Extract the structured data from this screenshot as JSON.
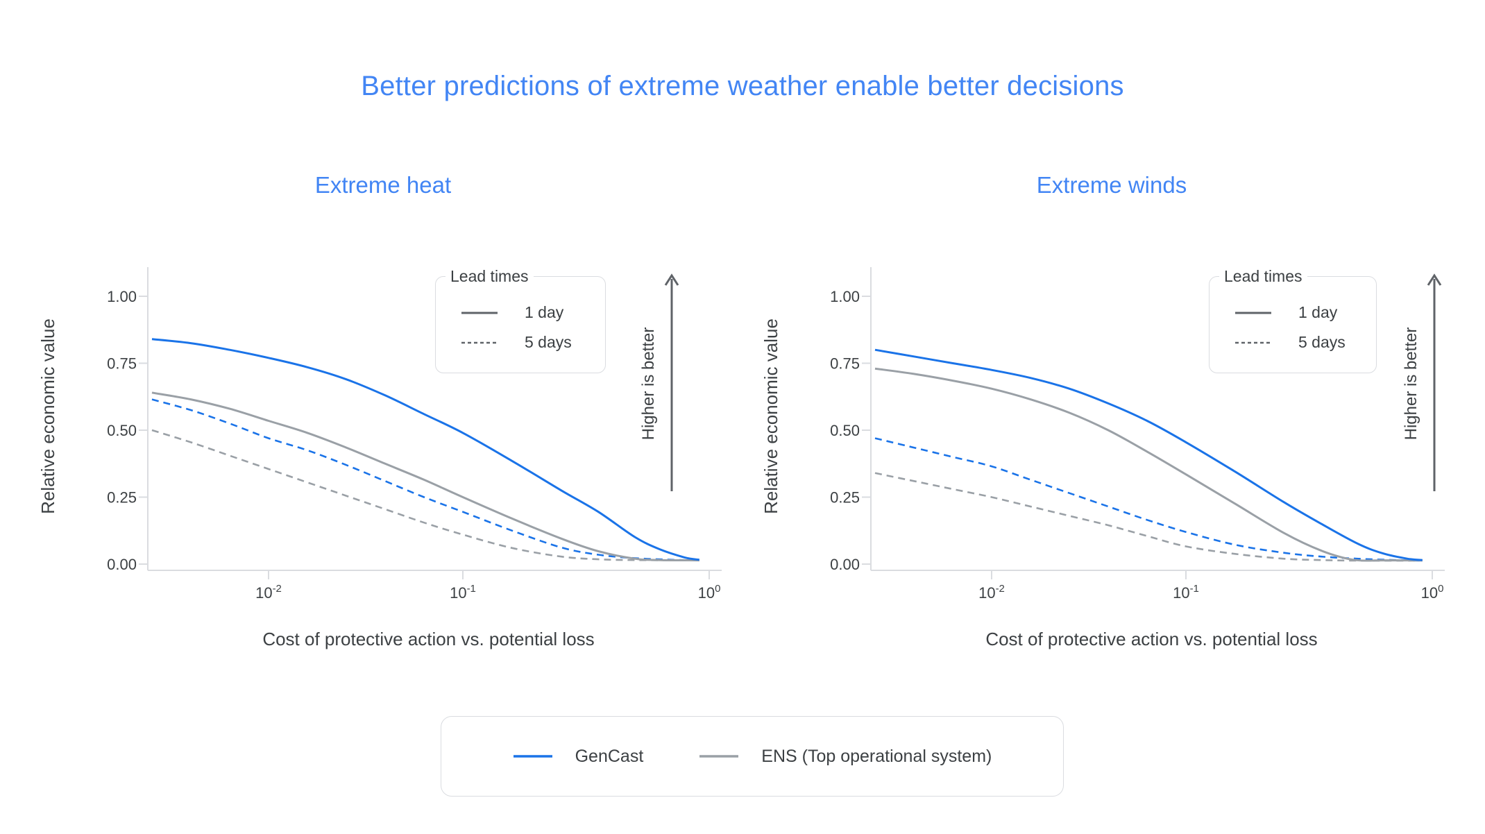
{
  "figure": {
    "title": "Better predictions of extreme weather enable better decisions"
  },
  "annotations": {
    "higher_is_better": "Higher is better"
  },
  "lead_times_legend": {
    "title": "Lead times",
    "items": [
      {
        "label": "1 day",
        "line_style": "solid"
      },
      {
        "label": "5 days",
        "line_style": "dashed"
      }
    ]
  },
  "series_legend": {
    "items": [
      {
        "label": "GenCast",
        "color": "#1a73e8"
      },
      {
        "label": "ENS (Top operational system)",
        "color": "#9aa0a6"
      }
    ]
  },
  "colors": {
    "accent_blue": "#4285f4",
    "gencast_blue": "#1a73e8",
    "ens_gray": "#9aa0a6",
    "axis_line": "#dadce0",
    "text_dark": "#3c4043",
    "arrow_gray": "#5f6368"
  },
  "chart_data": [
    {
      "type": "line",
      "title": "Extreme heat",
      "xlabel": "Cost of protective action vs. potential loss",
      "ylabel": "Relative economic value",
      "x_scale": "log",
      "x_tick_exponents": [
        -2,
        -1,
        0
      ],
      "y_ticks": [
        0.0,
        0.25,
        0.5,
        0.75,
        1.0
      ],
      "ylim": [
        0,
        1.05
      ],
      "xlim_exponents": [
        -2.62,
        0.06
      ],
      "grid": false,
      "legend_position": "upper-right",
      "series": [
        {
          "name": "ENS (Top operational system)",
          "lead_time": "5 days",
          "color": "#9aa0a6",
          "dashed": true,
          "points": [
            [
              -2.6,
              0.5
            ],
            [
              -2.4,
              0.455
            ],
            [
              -2.2,
              0.405
            ],
            [
              -2.0,
              0.355
            ],
            [
              -1.8,
              0.305
            ],
            [
              -1.6,
              0.255
            ],
            [
              -1.4,
              0.205
            ],
            [
              -1.2,
              0.155
            ],
            [
              -1.0,
              0.11
            ],
            [
              -0.8,
              0.06
            ],
            [
              -0.6,
              0.028
            ],
            [
              -0.45,
              0.018
            ],
            [
              -0.3,
              0.015
            ],
            [
              -0.04,
              0.014
            ]
          ]
        },
        {
          "name": "GenCast",
          "lead_time": "5 days",
          "color": "#1a73e8",
          "dashed": true,
          "points": [
            [
              -2.6,
              0.615
            ],
            [
              -2.4,
              0.575
            ],
            [
              -2.2,
              0.525
            ],
            [
              -2.0,
              0.47
            ],
            [
              -1.8,
              0.425
            ],
            [
              -1.6,
              0.37
            ],
            [
              -1.4,
              0.31
            ],
            [
              -1.2,
              0.25
            ],
            [
              -1.0,
              0.195
            ],
            [
              -0.8,
              0.125
            ],
            [
              -0.6,
              0.062
            ],
            [
              -0.45,
              0.035
            ],
            [
              -0.3,
              0.022
            ],
            [
              -0.15,
              0.016
            ],
            [
              -0.04,
              0.014
            ]
          ]
        },
        {
          "name": "ENS (Top operational system)",
          "lead_time": "1 day",
          "color": "#9aa0a6",
          "dashed": false,
          "points": [
            [
              -2.6,
              0.64
            ],
            [
              -2.4,
              0.615
            ],
            [
              -2.2,
              0.58
            ],
            [
              -2.0,
              0.535
            ],
            [
              -1.8,
              0.49
            ],
            [
              -1.6,
              0.435
            ],
            [
              -1.4,
              0.375
            ],
            [
              -1.2,
              0.315
            ],
            [
              -1.0,
              0.25
            ],
            [
              -0.8,
              0.17
            ],
            [
              -0.6,
              0.095
            ],
            [
              -0.45,
              0.048
            ],
            [
              -0.3,
              0.02
            ],
            [
              -0.2,
              0.015
            ],
            [
              -0.04,
              0.014
            ]
          ]
        },
        {
          "name": "GenCast",
          "lead_time": "1 day",
          "color": "#1a73e8",
          "dashed": false,
          "points": [
            [
              -2.6,
              0.84
            ],
            [
              -2.4,
              0.825
            ],
            [
              -2.2,
              0.8
            ],
            [
              -2.0,
              0.77
            ],
            [
              -1.8,
              0.735
            ],
            [
              -1.6,
              0.69
            ],
            [
              -1.4,
              0.63
            ],
            [
              -1.2,
              0.56
            ],
            [
              -1.0,
              0.49
            ],
            [
              -0.8,
              0.385
            ],
            [
              -0.6,
              0.275
            ],
            [
              -0.45,
              0.195
            ],
            [
              -0.3,
              0.1
            ],
            [
              -0.2,
              0.055
            ],
            [
              -0.1,
              0.025
            ],
            [
              -0.04,
              0.016
            ]
          ]
        }
      ]
    },
    {
      "type": "line",
      "title": "Extreme winds",
      "xlabel": "Cost of protective action vs. potential loss",
      "ylabel": "Relative economic value",
      "x_scale": "log",
      "x_tick_exponents": [
        -2,
        -1,
        0
      ],
      "y_ticks": [
        0.0,
        0.25,
        0.5,
        0.75,
        1.0
      ],
      "ylim": [
        0,
        1.05
      ],
      "xlim_exponents": [
        -2.62,
        0.06
      ],
      "grid": false,
      "legend_position": "upper-right",
      "series": [
        {
          "name": "ENS (Top operational system)",
          "lead_time": "5 days",
          "color": "#9aa0a6",
          "dashed": true,
          "points": [
            [
              -2.6,
              0.34
            ],
            [
              -2.4,
              0.31
            ],
            [
              -2.2,
              0.28
            ],
            [
              -2.0,
              0.25
            ],
            [
              -1.8,
              0.215
            ],
            [
              -1.6,
              0.18
            ],
            [
              -1.4,
              0.145
            ],
            [
              -1.2,
              0.105
            ],
            [
              -1.0,
              0.066
            ],
            [
              -0.8,
              0.038
            ],
            [
              -0.6,
              0.02
            ],
            [
              -0.45,
              0.015
            ],
            [
              -0.3,
              0.013
            ],
            [
              -0.04,
              0.013
            ]
          ]
        },
        {
          "name": "GenCast",
          "lead_time": "5 days",
          "color": "#1a73e8",
          "dashed": true,
          "points": [
            [
              -2.6,
              0.47
            ],
            [
              -2.4,
              0.435
            ],
            [
              -2.2,
              0.4
            ],
            [
              -2.0,
              0.365
            ],
            [
              -1.8,
              0.315
            ],
            [
              -1.6,
              0.265
            ],
            [
              -1.4,
              0.215
            ],
            [
              -1.2,
              0.165
            ],
            [
              -1.0,
              0.12
            ],
            [
              -0.8,
              0.072
            ],
            [
              -0.6,
              0.042
            ],
            [
              -0.45,
              0.028
            ],
            [
              -0.3,
              0.02
            ],
            [
              -0.15,
              0.015
            ],
            [
              -0.04,
              0.013
            ]
          ]
        },
        {
          "name": "ENS (Top operational system)",
          "lead_time": "1 day",
          "color": "#9aa0a6",
          "dashed": false,
          "points": [
            [
              -2.6,
              0.73
            ],
            [
              -2.4,
              0.71
            ],
            [
              -2.2,
              0.685
            ],
            [
              -2.0,
              0.655
            ],
            [
              -1.8,
              0.615
            ],
            [
              -1.6,
              0.565
            ],
            [
              -1.4,
              0.5
            ],
            [
              -1.2,
              0.42
            ],
            [
              -1.0,
              0.335
            ],
            [
              -0.8,
              0.225
            ],
            [
              -0.6,
              0.115
            ],
            [
              -0.45,
              0.05
            ],
            [
              -0.32,
              0.016
            ],
            [
              -0.2,
              0.014
            ],
            [
              -0.04,
              0.014
            ]
          ]
        },
        {
          "name": "GenCast",
          "lead_time": "1 day",
          "color": "#1a73e8",
          "dashed": false,
          "points": [
            [
              -2.6,
              0.8
            ],
            [
              -2.4,
              0.775
            ],
            [
              -2.2,
              0.75
            ],
            [
              -2.0,
              0.725
            ],
            [
              -1.8,
              0.695
            ],
            [
              -1.6,
              0.655
            ],
            [
              -1.4,
              0.6
            ],
            [
              -1.2,
              0.535
            ],
            [
              -1.0,
              0.455
            ],
            [
              -0.8,
              0.345
            ],
            [
              -0.6,
              0.23
            ],
            [
              -0.45,
              0.15
            ],
            [
              -0.3,
              0.075
            ],
            [
              -0.2,
              0.04
            ],
            [
              -0.1,
              0.02
            ],
            [
              -0.04,
              0.015
            ]
          ]
        }
      ]
    }
  ]
}
